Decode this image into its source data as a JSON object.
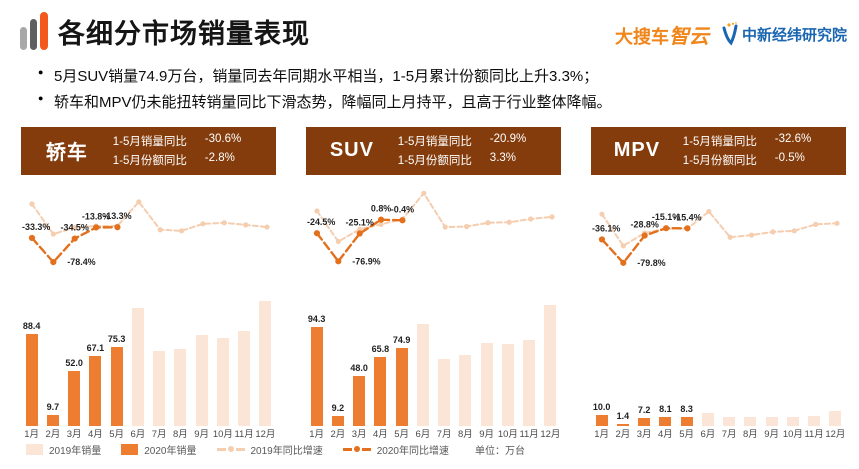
{
  "header": {
    "title": "各细分市场销量表现",
    "logo_dasouche": {
      "prefix": "大搜车",
      "suffix": "智云"
    },
    "logo_jingwei": "中新经纬研究院"
  },
  "bullets": [
    "5月SUV销量74.9万台，销量同去年同期水平相当，1-5月累计份额同比上升3.3%；",
    "轿车和MPV仍未能扭转销量同比下滑态势，降幅同上月持平，且高于行业整体降幅。"
  ],
  "colors": {
    "accent_orange": "#ED7D31",
    "light_orange": "#FBE5D6",
    "line_2019": "#F5CDAF",
    "line_2020": "#E2701C",
    "badge_brown": "#843C0C",
    "logo_orange": "#F08519",
    "logo_blue": "#1B66B1"
  },
  "months": [
    "1月",
    "2月",
    "3月",
    "4月",
    "5月",
    "6月",
    "7月",
    "8月",
    "9月",
    "10月",
    "11月",
    "12月"
  ],
  "legend": {
    "items": [
      {
        "label": "2019年销量",
        "swatch": "bar-2019"
      },
      {
        "label": "2020年销量",
        "swatch": "bar-2020"
      },
      {
        "label": "2019年同比增速",
        "swatch": "line-2019"
      },
      {
        "label": "2020年同比增速",
        "swatch": "line-2020"
      }
    ],
    "unit": "单位：万台"
  },
  "chart_data": [
    {
      "key": "sedan",
      "segment": "轿车",
      "type": "bar+line combo",
      "unit": "万台",
      "stats": [
        {
          "label": "1-5月销量同比",
          "value": "-30.6%"
        },
        {
          "label": "1-5月份额同比",
          "value": "-2.8%"
        }
      ],
      "sales_2020": [
        88.4,
        9.7,
        52.0,
        67.1,
        75.3,
        null,
        null,
        null,
        null,
        null,
        null,
        null
      ],
      "sales_2019_est": [
        null,
        null,
        null,
        null,
        null,
        113,
        71.5,
        73.5,
        87,
        84,
        90.5,
        120
      ],
      "yoy_2020_pct": [
        -33.3,
        -78.4,
        -34.5,
        -13.8,
        -13.3,
        null,
        null,
        null,
        null,
        null,
        null,
        null
      ],
      "yoy_2019_pct_est": [
        30,
        -26,
        -14,
        -11,
        -11,
        34,
        -18,
        -20,
        -7,
        -5,
        -9,
        -13
      ]
    },
    {
      "key": "suv",
      "segment": "SUV",
      "type": "bar+line combo",
      "unit": "万台",
      "stats": [
        {
          "label": "1-5月销量同比",
          "value": "-20.9%"
        },
        {
          "label": "1-5月份额同比",
          "value": "3.3%"
        }
      ],
      "sales_2020": [
        94.3,
        9.2,
        48.0,
        65.8,
        74.9,
        null,
        null,
        null,
        null,
        null,
        null,
        null
      ],
      "sales_2019_est": [
        null,
        null,
        null,
        null,
        null,
        97.5,
        63.5,
        67.5,
        79.5,
        78,
        82,
        116
      ],
      "yoy_2020_pct": [
        -24.5,
        -76.9,
        -25.1,
        0.8,
        -0.4,
        null,
        null,
        null,
        null,
        null,
        null,
        null
      ],
      "yoy_2019_pct_est": [
        17,
        -40,
        -17,
        -8,
        2,
        50,
        -13,
        -12,
        -5,
        -4,
        2,
        6
      ]
    },
    {
      "key": "mpv",
      "segment": "MPV",
      "type": "bar+line combo",
      "unit": "万台",
      "stats": [
        {
          "label": "1-5月销量同比",
          "value": "-32.6%"
        },
        {
          "label": "1-5月份额同比",
          "value": "-0.5%"
        }
      ],
      "sales_2020": [
        10.0,
        1.4,
        7.2,
        8.1,
        8.3,
        null,
        null,
        null,
        null,
        null,
        null,
        null
      ],
      "sales_2019_est": [
        null,
        null,
        null,
        null,
        null,
        12.5,
        8.0,
        8.0,
        8.6,
        8.6,
        9.0,
        13.5
      ],
      "yoy_2020_pct": [
        -36.1,
        -79.8,
        -28.8,
        -15.1,
        -15.4,
        null,
        null,
        null,
        null,
        null,
        null,
        null
      ],
      "yoy_2019_pct_est": [
        11,
        -48,
        -24,
        -16,
        -16,
        16,
        -32,
        -28,
        -22,
        -20,
        -8,
        -6
      ]
    }
  ]
}
